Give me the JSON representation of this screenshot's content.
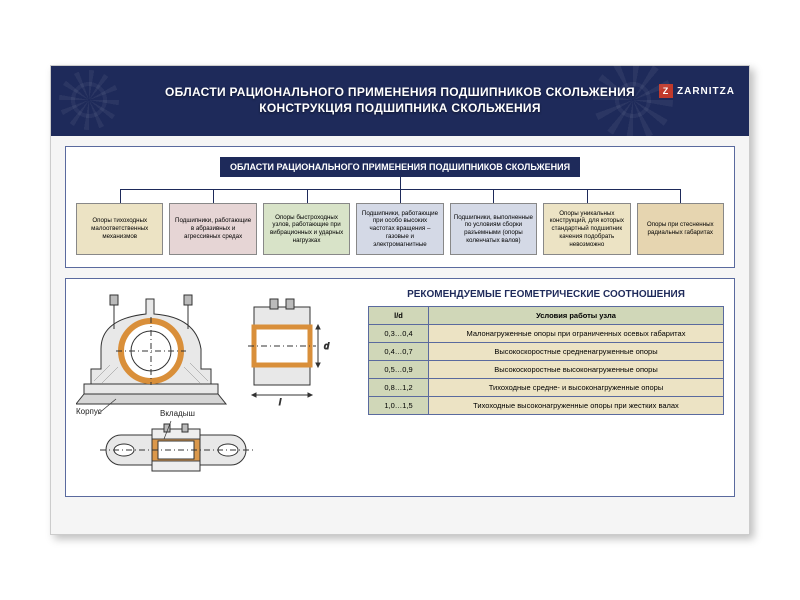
{
  "header": {
    "title_line1": "ОБЛАСТИ РАЦИОНАЛЬНОГО ПРИМЕНЕНИЯ ПОДШИПНИКОВ СКОЛЬЖЕНИЯ",
    "title_line2": "КОНСТРУКЦИЯ ПОДШИПНИКА СКОЛЬЖЕНИЯ",
    "logo_text": "ZARNITZA",
    "logo_mark": "Z"
  },
  "colors": {
    "primary": "#1e2a5a",
    "panel_border": "#5a6a9e",
    "header_green": "#d0d7b8",
    "cell_beige": "#ece3c4",
    "poster_bg": "#ffffff",
    "content_bg": "#f5f5f5",
    "logo_red": "#c0392b",
    "bearing_orange": "#d98f3a",
    "drawing_stroke": "#333333"
  },
  "chart": {
    "title": "ОБЛАСТИ РАЦИОНАЛЬНОГО ПРИМЕНЕНИЯ ПОДШИПНИКОВ СКОЛЬЖЕНИЯ",
    "boxes": [
      {
        "text": "Опоры тихоходных малоответственных механизмов",
        "bg": "#ece3c4"
      },
      {
        "text": "Подшипники, работающие в абразивных и агрессивных средах",
        "bg": "#e6d5d5"
      },
      {
        "text": "Опоры быстроходных узлов, работающие при вибрационных и ударных нагрузках",
        "bg": "#d8e3c8"
      },
      {
        "text": "Подшипники, работающие при особо высоких частотах вращения – газовые и электромагнитные",
        "bg": "#d4d9e6"
      },
      {
        "text": "Подшипники, выполненные по условиям сборки разъемными (опоры коленчатых валов)",
        "bg": "#d4d9e6"
      },
      {
        "text": "Опоры уникальных конструкций, для которых стандартный подшипник качения подобрать невозможно",
        "bg": "#ece3c4"
      },
      {
        "text": "Опоры при стесненных радиальных габаритах",
        "bg": "#e6d5b0"
      }
    ]
  },
  "diagram": {
    "label_korpus": "Корпус",
    "label_vkladysh": "Вкладыш",
    "dim_l": "l",
    "dim_d": "d"
  },
  "table": {
    "title": "РЕКОМЕНДУЕМЫЕ ГЕОМЕТРИЧЕСКИЕ СООТНОШЕНИЯ",
    "columns": [
      "l/d",
      "Условия работы узла"
    ],
    "rows": [
      [
        "0,3…0,4",
        "Малонагруженные опоры при ограниченных осевых габаритах"
      ],
      [
        "0,4…0,7",
        "Высокоскоростные средненагруженные опоры"
      ],
      [
        "0,5…0,9",
        "Высокоскоростные высоконагруженные опоры"
      ],
      [
        "0,8…1,2",
        "Тихоходные средне- и высоконагруженные опоры"
      ],
      [
        "1,0…1,5",
        "Тихоходные высоконагруженные опоры при жестких валах"
      ]
    ]
  }
}
